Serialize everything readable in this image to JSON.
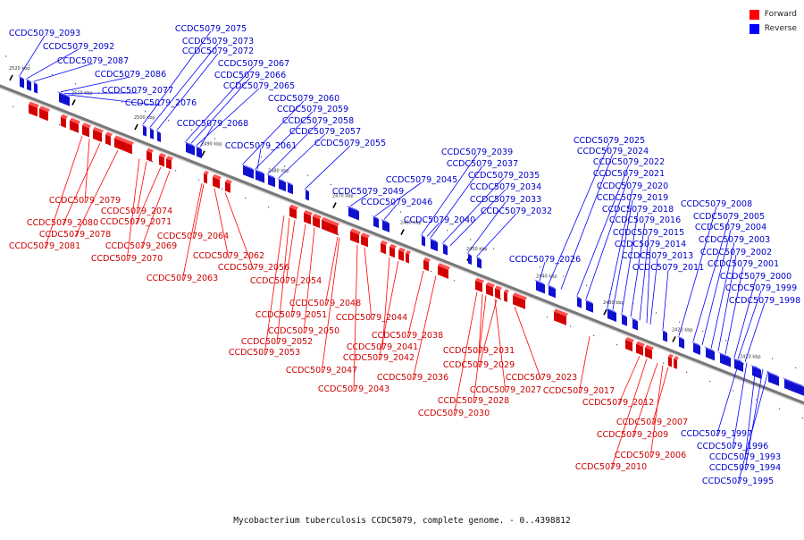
{
  "legend": {
    "forward_label": "Forward",
    "reverse_label": "Reverse",
    "forward_color": "#ff0000",
    "reverse_color": "#0000ff"
  },
  "caption": "Mycobacterium tuberculosis CCDC5079, complete genome. - 0..4398812",
  "ticks": [
    "2520 kbp",
    "2510 kbp",
    "2500 kbp",
    "2490 kbp",
    "2480 kbp",
    "2470 kbp",
    "2460 kbp",
    "2450 kbp",
    "2440 kbp",
    "2430 kbp",
    "2420 kbp",
    "2410 kbp"
  ],
  "reverse_labels": [
    "CCDC5079_2093",
    "CCDC5079_2092",
    "CCDC5079_2087",
    "CCDC5079_2086",
    "CCDC5079_2077",
    "CCDC5079_2076",
    "CCDC5079_2075",
    "CCDC5079_2073",
    "CCDC5079_2072",
    "CCDC5079_2067",
    "CCDC5079_2066",
    "CCDC5079_2065",
    "CCDC5079_2068",
    "CCDC5079_2060",
    "CCDC5079_2059",
    "CCDC5079_2058",
    "CCDC5079_2057",
    "CCDC5079_2061",
    "CCDC5079_2055",
    "CCDC5079_2039",
    "CCDC5079_2037",
    "CCDC5079_2045",
    "CCDC5079_2035",
    "CCDC5079_2049",
    "CCDC5079_2034",
    "CCDC5079_2046",
    "CCDC5079_2033",
    "CCDC5079_2040",
    "CCDC5079_2032",
    "CCDC5079_2026",
    "CCDC5079_2025",
    "CCDC5079_2024",
    "CCDC5079_2022",
    "CCDC5079_2021",
    "CCDC5079_2020",
    "CCDC5079_2019",
    "CCDC5079_2018",
    "CCDC5079_2016",
    "CCDC5079_2015",
    "CCDC5079_2014",
    "CCDC5079_2013",
    "CCDC5079_2011",
    "CCDC5079_2008",
    "CCDC5079_2005",
    "CCDC5079_2004",
    "CCDC5079_2003",
    "CCDC5079_2002",
    "CCDC5079_2001",
    "CCDC5079_2000",
    "CCDC5079_1999",
    "CCDC5079_1998",
    "CCDC5079_1997",
    "CCDC5079_1996",
    "CCDC5079_1993",
    "CCDC5079_1994",
    "CCDC5079_1995"
  ],
  "forward_labels": [
    "CCDC5079_2079",
    "CCDC5079_2074",
    "CCDC5079_2080",
    "CCDC5079_2071",
    "CCDC5079_2078",
    "CCDC5079_2069",
    "CCDC5079_2064",
    "CCDC5079_2081",
    "CCDC5079_2070",
    "CCDC5079_2062",
    "CCDC5079_2056",
    "CCDC5079_2063",
    "CCDC5079_2054",
    "CCDC5079_2048",
    "CCDC5079_2051",
    "CCDC5079_2044",
    "CCDC5079_2050",
    "CCDC5079_2052",
    "CCDC5079_2038",
    "CCDC5079_2053",
    "CCDC5079_2041",
    "CCDC5079_2042",
    "CCDC5079_2031",
    "CCDC5079_2047",
    "CCDC5079_2029",
    "CCDC5079_2036",
    "CCDC5079_2023",
    "CCDC5079_2043",
    "CCDC5079_2027",
    "CCDC5079_2017",
    "CCDC5079_2028",
    "CCDC5079_2012",
    "CCDC5079_2030",
    "CCDC5079_2007",
    "CCDC5079_2009",
    "CCDC5079_2006",
    "CCDC5079_2010"
  ]
}
